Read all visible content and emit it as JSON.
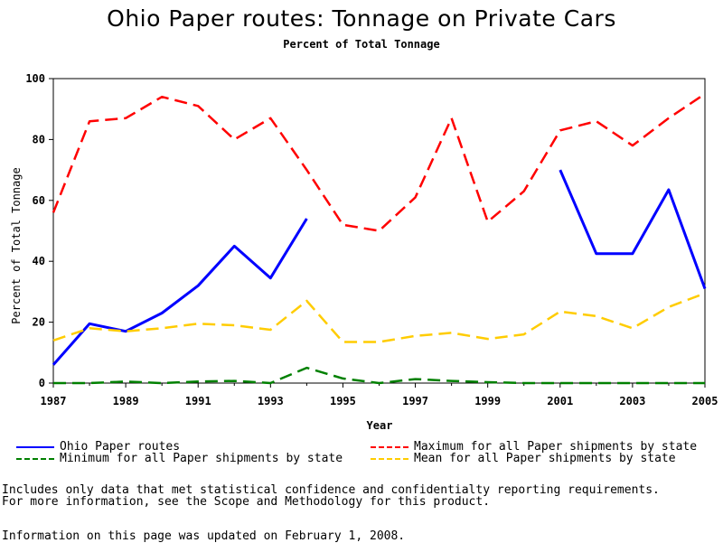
{
  "chart_data": {
    "type": "line",
    "title": "Ohio Paper routes: Tonnage on Private Cars",
    "subtitle": "Percent of Total Tonnage",
    "xlabel": "Year",
    "ylabel": "Percent of Total Tonnage",
    "xlim": [
      1987,
      2005
    ],
    "ylim": [
      0,
      100
    ],
    "x_ticks": [
      1987,
      1989,
      1991,
      1993,
      1995,
      1997,
      1999,
      2001,
      2003,
      2005
    ],
    "y_ticks": [
      0,
      20,
      40,
      60,
      80,
      100
    ],
    "grid": false,
    "legend_position": "bottom",
    "series": [
      {
        "name": "Ohio Paper routes",
        "color": "#0000ff",
        "style": "solid",
        "points": [
          [
            1987,
            6
          ],
          [
            1988,
            19.5
          ],
          [
            1989,
            17
          ],
          [
            1990,
            23
          ],
          [
            1991,
            32
          ],
          [
            1992,
            45
          ],
          [
            1993,
            34.5
          ],
          [
            1994,
            54
          ],
          [
            2001,
            70
          ],
          [
            2002,
            42.5
          ],
          [
            2003,
            42.5
          ],
          [
            2004,
            63.5
          ],
          [
            2005,
            31
          ]
        ]
      },
      {
        "name": "Maximum for all Paper shipments by state",
        "color": "#ff0000",
        "style": "dashed",
        "points": [
          [
            1987,
            56
          ],
          [
            1988,
            86
          ],
          [
            1989,
            87
          ],
          [
            1990,
            94
          ],
          [
            1991,
            91
          ],
          [
            1992,
            80
          ],
          [
            1993,
            87
          ],
          [
            1994,
            70
          ],
          [
            1995,
            52
          ],
          [
            1996,
            50
          ],
          [
            1997,
            61
          ],
          [
            1998,
            87
          ],
          [
            1999,
            53
          ],
          [
            2000,
            63
          ],
          [
            2001,
            83
          ],
          [
            2002,
            86
          ],
          [
            2003,
            78
          ],
          [
            2004,
            87
          ],
          [
            2005,
            95
          ]
        ]
      },
      {
        "name": "Minimum for all Paper shipments by state",
        "color": "#008000",
        "style": "dashed",
        "points": [
          [
            1987,
            0
          ],
          [
            1988,
            0
          ],
          [
            1989,
            0.5
          ],
          [
            1990,
            0
          ],
          [
            1991,
            0.5
          ],
          [
            1992,
            0.7
          ],
          [
            1993,
            0
          ],
          [
            1994,
            5
          ],
          [
            1995,
            1.5
          ],
          [
            1996,
            0
          ],
          [
            1997,
            1.3
          ],
          [
            1998,
            0.7
          ],
          [
            1999,
            0.3
          ],
          [
            2000,
            0
          ],
          [
            2001,
            0
          ],
          [
            2002,
            0
          ],
          [
            2003,
            0
          ],
          [
            2004,
            0
          ],
          [
            2005,
            0
          ]
        ]
      },
      {
        "name": "Mean for all Paper shipments by state",
        "color": "#ffcc00",
        "style": "dashed",
        "points": [
          [
            1987,
            14
          ],
          [
            1988,
            18
          ],
          [
            1989,
            17
          ],
          [
            1990,
            18
          ],
          [
            1991,
            19.5
          ],
          [
            1992,
            19
          ],
          [
            1993,
            17.5
          ],
          [
            1994,
            27
          ],
          [
            1995,
            13.5
          ],
          [
            1996,
            13.5
          ],
          [
            1997,
            15.5
          ],
          [
            1998,
            16.5
          ],
          [
            1999,
            14.5
          ],
          [
            2000,
            16
          ],
          [
            2001,
            23.5
          ],
          [
            2002,
            22
          ],
          [
            2003,
            18
          ],
          [
            2004,
            25
          ],
          [
            2005,
            29.5
          ]
        ]
      }
    ]
  },
  "footer": {
    "note_line1": "Includes only data that met statistical confidence and confidentialty reporting requirements.",
    "note_line2": "For more information, see the Scope and Methodology for this product.",
    "updated": "Information on this page was updated on February 1, 2008."
  }
}
